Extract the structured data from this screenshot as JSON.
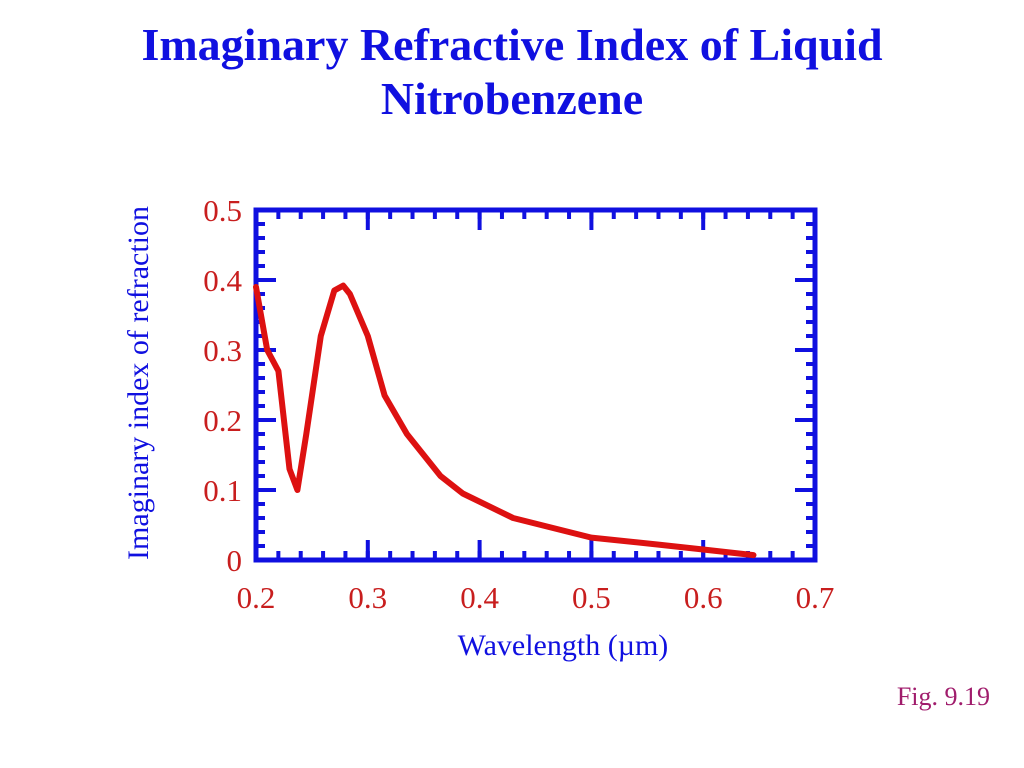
{
  "slide": {
    "title_line1": "Imaginary Refractive Index of Liquid",
    "title_line2": "Nitrobenzene",
    "fig_label": "Fig. 9.19"
  },
  "colors": {
    "title": "#1010e0",
    "axes": "#1010e0",
    "tick_labels": "#c81e1e",
    "series": "#dd1111",
    "fig_label": "#a01c6c"
  },
  "chart_data": {
    "type": "line",
    "xlabel": "Wavelength (µm)",
    "ylabel": "Imaginary index of refraction",
    "xlim": [
      0.2,
      0.7
    ],
    "ylim": [
      0,
      0.5
    ],
    "xticks": [
      "0.2",
      "0.3",
      "0.4",
      "0.5",
      "0.6",
      "0.7"
    ],
    "yticks": [
      "0",
      "0.1",
      "0.2",
      "0.3",
      "0.4",
      "0.5"
    ],
    "grid": false,
    "legend": "none",
    "series": [
      {
        "x": [
          0.2,
          0.21,
          0.22,
          0.23,
          0.237,
          0.245,
          0.258,
          0.27,
          0.278,
          0.284,
          0.3,
          0.315,
          0.335,
          0.365,
          0.385,
          0.43,
          0.5,
          0.56,
          0.6,
          0.645
        ],
        "y": [
          0.39,
          0.3,
          0.27,
          0.13,
          0.1,
          0.18,
          0.32,
          0.385,
          0.392,
          0.38,
          0.32,
          0.235,
          0.18,
          0.12,
          0.095,
          0.06,
          0.032,
          0.022,
          0.015,
          0.007
        ]
      }
    ]
  }
}
